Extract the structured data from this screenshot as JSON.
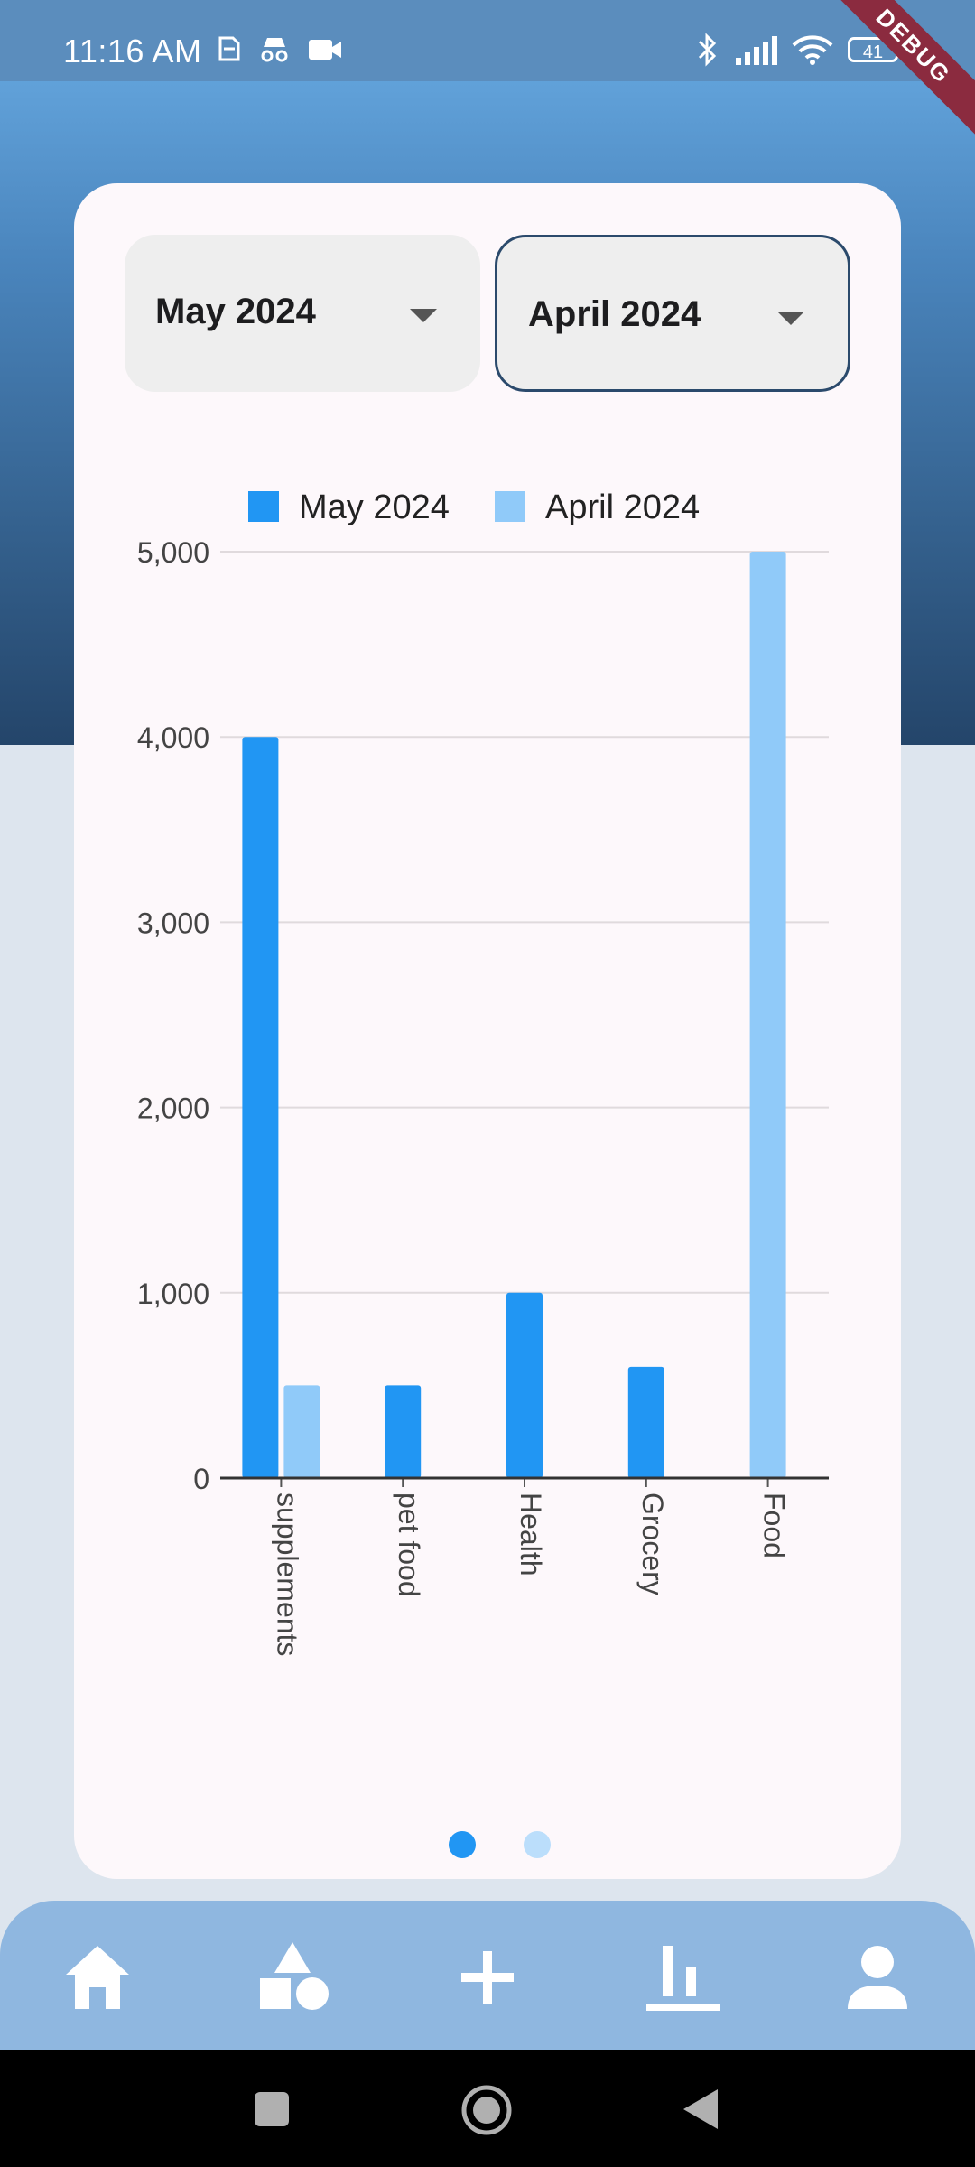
{
  "status_bar": {
    "time": "11:16 AM",
    "battery": "41"
  },
  "debug_ribbon": "DEBUG",
  "selectors": {
    "left": {
      "value": "May 2024"
    },
    "right": {
      "value": "April 2024"
    }
  },
  "chart_data": {
    "type": "bar",
    "categories": [
      "supplements",
      "pet food",
      "Health",
      "Grocery",
      "Food"
    ],
    "series": [
      {
        "name": "May 2024",
        "color": "#2196f3",
        "values": [
          4000,
          500,
          1000,
          600,
          0
        ]
      },
      {
        "name": "April 2024",
        "color": "#90caf9",
        "values": [
          500,
          0,
          0,
          0,
          5000
        ]
      }
    ],
    "ylim": [
      0,
      5000
    ],
    "yticks": [
      0,
      1000,
      2000,
      3000,
      4000,
      5000
    ],
    "ytick_labels": [
      "0",
      "1,000",
      "2,000",
      "3,000",
      "4,000",
      "5,000"
    ],
    "legend_position": "top-center",
    "grid": true
  },
  "pager": {
    "count": 2,
    "active": 0,
    "active_color": "#2196f3",
    "inactive_color": "#bbdefb"
  },
  "bottom_nav": [
    {
      "icon": "home-icon"
    },
    {
      "icon": "categories-icon"
    },
    {
      "icon": "add-icon"
    },
    {
      "icon": "stats-icon"
    },
    {
      "icon": "profile-icon"
    }
  ]
}
